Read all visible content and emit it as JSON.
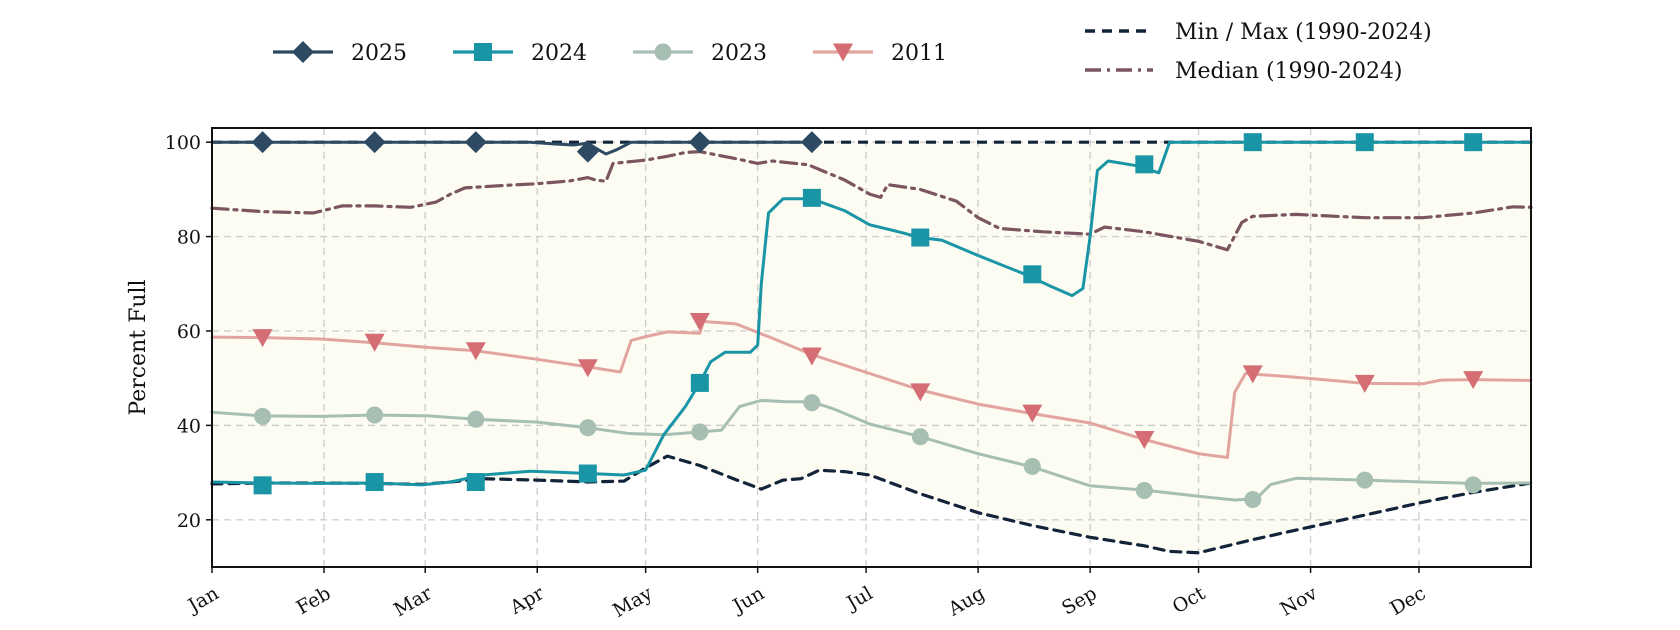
{
  "chart_data": {
    "type": "line",
    "ylabel": "Percent Full",
    "ylim": [
      10,
      103
    ],
    "yticks": [
      20,
      40,
      60,
      80,
      100
    ],
    "x_ticks": [
      "Jan",
      "Feb",
      "Mar",
      "Apr",
      "May",
      "Jun",
      "Jul",
      "Aug",
      "Sep",
      "Oct",
      "Nov",
      "Dec"
    ],
    "x_tick_days": [
      0,
      31,
      59,
      90,
      120,
      151,
      181,
      212,
      243,
      273,
      304,
      334
    ],
    "xlim": [
      0,
      365
    ],
    "grid": true,
    "band_fill": "#fcfcf2",
    "series": [
      {
        "name": "2025",
        "color": "#2e4a62",
        "marker": "diamond",
        "points": [
          [
            0,
            100
          ],
          [
            14,
            100
          ],
          [
            30,
            100
          ],
          [
            45,
            100
          ],
          [
            60,
            100
          ],
          [
            75,
            100
          ],
          [
            88,
            100
          ],
          [
            95,
            99.6
          ],
          [
            100,
            99.4
          ],
          [
            104,
            99.8
          ],
          [
            106,
            98.8
          ],
          [
            109,
            97.5
          ],
          [
            112,
            98.4
          ],
          [
            116,
            100
          ],
          [
            130,
            100
          ],
          [
            145,
            100
          ],
          [
            155,
            100
          ],
          [
            166,
            100
          ]
        ],
        "marker_points": [
          [
            14,
            100
          ],
          [
            45,
            100
          ],
          [
            73,
            100
          ],
          [
            104,
            98
          ],
          [
            135,
            100
          ],
          [
            166,
            100
          ]
        ]
      },
      {
        "name": "2024",
        "color": "#1a95a5",
        "marker": "square",
        "points": [
          [
            0,
            28
          ],
          [
            14,
            27.8
          ],
          [
            30,
            27.7
          ],
          [
            45,
            27.8
          ],
          [
            58,
            27.4
          ],
          [
            66,
            28
          ],
          [
            75,
            29.5
          ],
          [
            88,
            30.3
          ],
          [
            95,
            30.1
          ],
          [
            104,
            29.8
          ],
          [
            114,
            29.5
          ],
          [
            120,
            30.5
          ],
          [
            125,
            38
          ],
          [
            131,
            44
          ],
          [
            135,
            49
          ],
          [
            138,
            53.5
          ],
          [
            142,
            55.5
          ],
          [
            149,
            55.5
          ],
          [
            151,
            57
          ],
          [
            152,
            70
          ],
          [
            154,
            85
          ],
          [
            158,
            88
          ],
          [
            166,
            88
          ],
          [
            175,
            85.5
          ],
          [
            182,
            82.5
          ],
          [
            190,
            81
          ],
          [
            196,
            79.8
          ],
          [
            202,
            79.2
          ],
          [
            212,
            76
          ],
          [
            225,
            72
          ],
          [
            232,
            69.5
          ],
          [
            238,
            67.5
          ],
          [
            241,
            69
          ],
          [
            243,
            80
          ],
          [
            245,
            94
          ],
          [
            248,
            96
          ],
          [
            256,
            95
          ],
          [
            262,
            93.5
          ],
          [
            265,
            100
          ],
          [
            290,
            100
          ],
          [
            320,
            100
          ],
          [
            350,
            100
          ],
          [
            365,
            100
          ]
        ],
        "marker_points": [
          [
            14,
            27.3
          ],
          [
            45,
            28
          ],
          [
            73,
            28
          ],
          [
            104,
            29.8
          ],
          [
            135,
            49
          ],
          [
            166,
            88.2
          ],
          [
            196,
            79.8
          ],
          [
            227,
            72
          ],
          [
            258,
            95.3
          ],
          [
            288,
            100
          ],
          [
            319,
            100
          ],
          [
            349,
            100
          ]
        ]
      },
      {
        "name": "2023",
        "color": "#a7bfb3",
        "marker": "circle",
        "points": [
          [
            0,
            42.8
          ],
          [
            14,
            42
          ],
          [
            30,
            41.9
          ],
          [
            45,
            42.2
          ],
          [
            60,
            42
          ],
          [
            73,
            41.3
          ],
          [
            90,
            40.7
          ],
          [
            104,
            39.5
          ],
          [
            115,
            38.3
          ],
          [
            125,
            38
          ],
          [
            135,
            38.6
          ],
          [
            141,
            39
          ],
          [
            146,
            44
          ],
          [
            152,
            45.3
          ],
          [
            159,
            45
          ],
          [
            166,
            45
          ],
          [
            172,
            43.5
          ],
          [
            182,
            40.3
          ],
          [
            196,
            37.6
          ],
          [
            212,
            34
          ],
          [
            227,
            31.2
          ],
          [
            243,
            27.2
          ],
          [
            258,
            26.3
          ],
          [
            273,
            25
          ],
          [
            283,
            24.2
          ],
          [
            289,
            24.5
          ],
          [
            293,
            27.5
          ],
          [
            300,
            28.8
          ],
          [
            319,
            28.4
          ],
          [
            335,
            28
          ],
          [
            349,
            27.7
          ],
          [
            365,
            27.8
          ]
        ],
        "marker_points": [
          [
            14,
            41.9
          ],
          [
            45,
            42.2
          ],
          [
            73,
            41.3
          ],
          [
            104,
            39.5
          ],
          [
            135,
            38.6
          ],
          [
            166,
            44.8
          ],
          [
            196,
            37.6
          ],
          [
            227,
            31.3
          ],
          [
            258,
            26.2
          ],
          [
            288,
            24.3
          ],
          [
            319,
            28.4
          ],
          [
            349,
            27.4
          ]
        ]
      },
      {
        "name": "2011",
        "color": "#e2a49e",
        "marker": "triangle-down",
        "marker_color": "#d46e74",
        "points": [
          [
            0,
            58.7
          ],
          [
            14,
            58.6
          ],
          [
            30,
            58.3
          ],
          [
            45,
            57.5
          ],
          [
            60,
            56.5
          ],
          [
            73,
            55.8
          ],
          [
            90,
            54
          ],
          [
            104,
            52.4
          ],
          [
            113,
            51.3
          ],
          [
            116,
            58
          ],
          [
            120,
            58.8
          ],
          [
            126,
            59.8
          ],
          [
            135,
            59.5
          ],
          [
            136,
            62
          ],
          [
            145,
            61.5
          ],
          [
            155,
            58.5
          ],
          [
            166,
            55
          ],
          [
            182,
            51
          ],
          [
            196,
            47.5
          ],
          [
            212,
            44.5
          ],
          [
            227,
            42.5
          ],
          [
            243,
            40.5
          ],
          [
            258,
            37
          ],
          [
            273,
            34
          ],
          [
            281,
            33.2
          ],
          [
            283,
            47
          ],
          [
            286,
            51
          ],
          [
            300,
            50.2
          ],
          [
            319,
            48.9
          ],
          [
            335,
            48.8
          ],
          [
            340,
            49.6
          ],
          [
            349,
            49.7
          ],
          [
            365,
            49.5
          ]
        ],
        "marker_points": [
          [
            14,
            58.6
          ],
          [
            45,
            57.6
          ],
          [
            73,
            55.8
          ],
          [
            104,
            52.2
          ],
          [
            135,
            62
          ],
          [
            166,
            54.7
          ],
          [
            196,
            47.1
          ],
          [
            227,
            42.6
          ],
          [
            258,
            37
          ],
          [
            288,
            50.9
          ],
          [
            319,
            48.9
          ],
          [
            349,
            49.7
          ]
        ]
      },
      {
        "name": "Min / Max (1990-2024)",
        "color": "#13243a",
        "dash": "10,7",
        "marker": "none",
        "points": [
          [
            0,
            27.6
          ],
          [
            14,
            27.8
          ],
          [
            30,
            27.8
          ],
          [
            45,
            27.7
          ],
          [
            58,
            27.5
          ],
          [
            66,
            28
          ],
          [
            75,
            28.7
          ],
          [
            90,
            28.4
          ],
          [
            104,
            28
          ],
          [
            114,
            28.2
          ],
          [
            120,
            31
          ],
          [
            126,
            33.5
          ],
          [
            135,
            31.5
          ],
          [
            145,
            28.5
          ],
          [
            152,
            26.5
          ],
          [
            158,
            28.4
          ],
          [
            163,
            28.7
          ],
          [
            168,
            30.5
          ],
          [
            175,
            30.2
          ],
          [
            182,
            29.5
          ],
          [
            196,
            25.5
          ],
          [
            212,
            21.5
          ],
          [
            227,
            18.8
          ],
          [
            243,
            16.3
          ],
          [
            258,
            14.5
          ],
          [
            265,
            13.3
          ],
          [
            273,
            13
          ],
          [
            288,
            15.8
          ],
          [
            304,
            18.5
          ],
          [
            319,
            21
          ],
          [
            335,
            23.7
          ],
          [
            349,
            25.8
          ],
          [
            365,
            27.8
          ]
        ],
        "secondary_points": [
          [
            0,
            100
          ],
          [
            365,
            100
          ]
        ]
      },
      {
        "name": "Median (1990-2024)",
        "color": "#7b5560",
        "dash": "16,6,3,6",
        "marker": "none",
        "points": [
          [
            0,
            86
          ],
          [
            14,
            85.3
          ],
          [
            28,
            85
          ],
          [
            36,
            86.5
          ],
          [
            45,
            86.5
          ],
          [
            55,
            86.2
          ],
          [
            62,
            87.3
          ],
          [
            66,
            89
          ],
          [
            70,
            90.3
          ],
          [
            80,
            90.8
          ],
          [
            90,
            91.2
          ],
          [
            99,
            91.8
          ],
          [
            104,
            92.5
          ],
          [
            106,
            92
          ],
          [
            109,
            91.7
          ],
          [
            111,
            95.5
          ],
          [
            120,
            96.2
          ],
          [
            126,
            97
          ],
          [
            131,
            97.8
          ],
          [
            135,
            98
          ],
          [
            145,
            96.5
          ],
          [
            151,
            95.5
          ],
          [
            155,
            96
          ],
          [
            165,
            95.2
          ],
          [
            175,
            92
          ],
          [
            182,
            89
          ],
          [
            185,
            88.3
          ],
          [
            187,
            91
          ],
          [
            196,
            90
          ],
          [
            206,
            87.5
          ],
          [
            212,
            84
          ],
          [
            218,
            81.7
          ],
          [
            230,
            81
          ],
          [
            243,
            80.5
          ],
          [
            247,
            82
          ],
          [
            258,
            81
          ],
          [
            273,
            79
          ],
          [
            281,
            77.2
          ],
          [
            285,
            83
          ],
          [
            288,
            84.3
          ],
          [
            300,
            84.7
          ],
          [
            319,
            84
          ],
          [
            335,
            84
          ],
          [
            349,
            85
          ],
          [
            360,
            86.3
          ],
          [
            365,
            86.2
          ]
        ]
      }
    ]
  }
}
